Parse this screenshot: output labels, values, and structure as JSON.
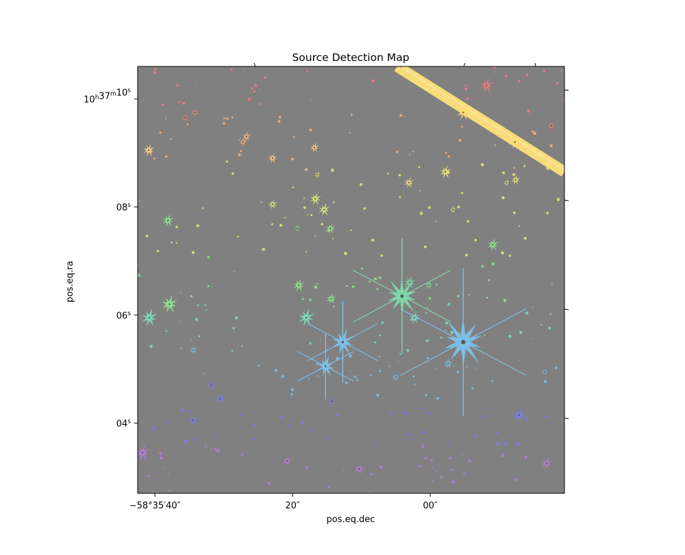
{
  "chart_data": {
    "type": "scatter",
    "title": "Source Detection Map",
    "xlabel": "pos.eq.dec",
    "ylabel": "pos.eq.ra",
    "x_ticks": [
      {
        "value": -40,
        "label": "−58°35′40″"
      },
      {
        "value": -20,
        "label": "20″"
      },
      {
        "value": 0,
        "label": "00″"
      }
    ],
    "y_ticks": [
      {
        "value": 10,
        "label": "10h37m10s"
      },
      {
        "value": 8,
        "label": "08s"
      },
      {
        "value": 6,
        "label": "06s"
      },
      {
        "value": 4,
        "label": "04s"
      }
    ],
    "xlim": [
      -42.5,
      19.5
    ],
    "ylim": [
      2.7,
      10.6
    ],
    "background_color": "#808080",
    "grid": false,
    "sources": [
      {
        "x": 4.8,
        "y": 5.5,
        "size": 9,
        "color": "#7cc4ef"
      },
      {
        "x": -4.1,
        "y": 6.35,
        "size": 7,
        "color": "#7fdba8"
      },
      {
        "x": -12.7,
        "y": 5.5,
        "size": 5,
        "color": "#7cc4ef"
      },
      {
        "x": -15.2,
        "y": 5.05,
        "size": 4,
        "color": "#7cc4ef"
      },
      {
        "x": -18.0,
        "y": 5.95,
        "size": 3.5,
        "color": "#7fdbbf"
      },
      {
        "x": -37.9,
        "y": 6.2,
        "size": 3.5,
        "color": "#8fe88f"
      },
      {
        "x": -40.8,
        "y": 5.95,
        "size": 3.5,
        "color": "#7fdbbf"
      },
      {
        "x": -2.3,
        "y": 5.95,
        "size": 2.5,
        "color": "#7fdbbf"
      },
      {
        "x": -3.0,
        "y": 6.6,
        "size": 2.5,
        "color": "#7fdba8"
      },
      {
        "x": -19.1,
        "y": 6.55,
        "size": 2.5,
        "color": "#8fe88f"
      },
      {
        "x": -14.4,
        "y": 6.3,
        "size": 2.2,
        "color": "#8fe88f"
      },
      {
        "x": -38.1,
        "y": 7.75,
        "size": 2.5,
        "color": "#8fe88f"
      },
      {
        "x": -14.5,
        "y": 7.6,
        "size": 2.2,
        "color": "#8fe88f"
      },
      {
        "x": 9.1,
        "y": 7.3,
        "size": 2.5,
        "color": "#8fe88f"
      },
      {
        "x": -15.4,
        "y": 7.95,
        "size": 2.5,
        "color": "#d9ec7a"
      },
      {
        "x": -16.7,
        "y": 8.15,
        "size": 2.5,
        "color": "#d9ec7a"
      },
      {
        "x": -22.9,
        "y": 8.05,
        "size": 2,
        "color": "#d9ec7a"
      },
      {
        "x": 2.2,
        "y": 8.65,
        "size": 2.5,
        "color": "#f0e27a"
      },
      {
        "x": -3.1,
        "y": 8.45,
        "size": 2.2,
        "color": "#f0e27a"
      },
      {
        "x": 12.4,
        "y": 8.5,
        "size": 2,
        "color": "#f0e27a"
      },
      {
        "x": -40.9,
        "y": 9.05,
        "size": 2.5,
        "color": "#ffcf7a"
      },
      {
        "x": -16.8,
        "y": 9.1,
        "size": 2,
        "color": "#ffcf7a"
      },
      {
        "x": -22.9,
        "y": 8.9,
        "size": 2,
        "color": "#ffcf7a"
      },
      {
        "x": -26.7,
        "y": 9.3,
        "size": 2,
        "color": "#ffb27a"
      },
      {
        "x": 8.2,
        "y": 10.25,
        "size": 2.8,
        "color": "#f07a7a"
      },
      {
        "x": -34.2,
        "y": 9.75,
        "size": 1.6,
        "color": "#f07a7a"
      },
      {
        "x": 4.8,
        "y": 9.75,
        "size": 3,
        "color": "#ffdb6e"
      },
      {
        "x": 12.3,
        "y": 9.2,
        "size": 2.8,
        "color": "#ffdb6e"
      },
      {
        "x": 12.9,
        "y": 4.15,
        "size": 2.8,
        "color": "#7a7aef"
      },
      {
        "x": -30.5,
        "y": 4.45,
        "size": 2.2,
        "color": "#7a7aef"
      },
      {
        "x": -34.5,
        "y": 4.05,
        "size": 2,
        "color": "#7a7aef"
      },
      {
        "x": -41.8,
        "y": 3.45,
        "size": 3,
        "color": "#b77ad9"
      },
      {
        "x": -10.3,
        "y": 3.15,
        "size": 2.2,
        "color": "#b77ad9"
      },
      {
        "x": -20.8,
        "y": 3.3,
        "size": 2,
        "color": "#b77ad9"
      },
      {
        "x": 16.9,
        "y": 3.25,
        "size": 2.5,
        "color": "#b77ad9"
      },
      {
        "x": 2.6,
        "y": 5.1,
        "size": 2,
        "color": "#7cc4ef"
      },
      {
        "x": -5.0,
        "y": 4.85,
        "size": 1.6,
        "color": "#7cc4ef"
      },
      {
        "x": -34.4,
        "y": 5.35,
        "size": 1.6,
        "color": "#7cc4ef"
      },
      {
        "x": -31.8,
        "y": 4.7,
        "size": 1.6,
        "color": "#7a7aef"
      },
      {
        "x": -14.3,
        "y": 4.4,
        "size": 1.4,
        "color": "#7a7aef"
      },
      {
        "x": -27.2,
        "y": 9.2,
        "size": 1.6,
        "color": "#ffb27a"
      },
      {
        "x": -35.6,
        "y": 9.65,
        "size": 1.4,
        "color": "#f07a7a"
      },
      {
        "x": 17.6,
        "y": 9.5,
        "size": 1.6,
        "color": "#f07a7a"
      },
      {
        "x": -16.4,
        "y": 8.6,
        "size": 1.4,
        "color": "#f0e27a"
      },
      {
        "x": 11.1,
        "y": 8.45,
        "size": 1.4,
        "color": "#f0e27a"
      },
      {
        "x": 3.3,
        "y": 7.95,
        "size": 1.4,
        "color": "#d9ec7a"
      },
      {
        "x": -19.3,
        "y": 7.6,
        "size": 1.2,
        "color": "#8fe88f"
      },
      {
        "x": 16.6,
        "y": 4.95,
        "size": 1.4,
        "color": "#7cc4ef"
      },
      {
        "x": -0.2,
        "y": 6.55,
        "size": 1.6,
        "color": "#8fe88f"
      }
    ],
    "streak": {
      "x1": -4.8,
      "y1": 10.6,
      "x2": 19.5,
      "y2": 8.65,
      "color": "#ffe07a"
    }
  }
}
